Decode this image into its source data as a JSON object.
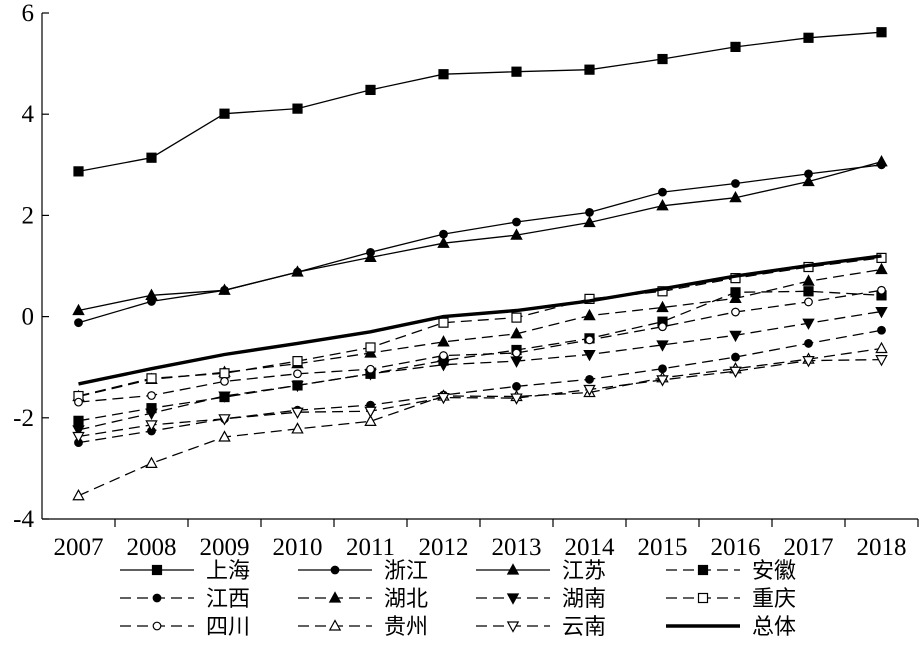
{
  "chart_data": {
    "type": "line",
    "title": "",
    "xlabel": "",
    "ylabel": "",
    "x": [
      "2007",
      "2008",
      "2009",
      "2010",
      "2011",
      "2012",
      "2013",
      "2014",
      "2015",
      "2016",
      "2017",
      "2018"
    ],
    "ylim": [
      -4,
      6
    ],
    "yticks": [
      "-4",
      "-2",
      "0",
      "2",
      "4",
      "6"
    ],
    "grid": false,
    "legend_position": "bottom",
    "series": [
      {
        "name": "上海",
        "line": "solid",
        "marker": "square",
        "filled": true,
        "values": [
          2.87,
          3.14,
          4.01,
          4.11,
          4.48,
          4.79,
          4.84,
          4.88,
          5.09,
          5.33,
          5.51,
          5.62
        ]
      },
      {
        "name": "浙江",
        "line": "solid",
        "marker": "circle",
        "filled": true,
        "values": [
          -0.12,
          0.3,
          0.52,
          0.88,
          1.27,
          1.63,
          1.87,
          2.06,
          2.46,
          2.63,
          2.82,
          3.0
        ]
      },
      {
        "name": "江苏",
        "line": "solid",
        "marker": "triangle-up",
        "filled": true,
        "values": [
          0.12,
          0.42,
          0.52,
          0.88,
          1.17,
          1.45,
          1.61,
          1.86,
          2.19,
          2.35,
          2.67,
          3.06
        ]
      },
      {
        "name": "安徽",
        "line": "dashed",
        "marker": "square",
        "filled": true,
        "values": [
          -2.06,
          -1.81,
          -1.59,
          -1.36,
          -1.13,
          -0.87,
          -0.66,
          -0.43,
          -0.1,
          0.48,
          0.5,
          0.42
        ]
      },
      {
        "name": "江西",
        "line": "dashed",
        "marker": "circle",
        "filled": true,
        "values": [
          -2.49,
          -2.26,
          -2.02,
          -1.85,
          -1.75,
          -1.55,
          -1.38,
          -1.24,
          -1.03,
          -0.8,
          -0.53,
          -0.27
        ]
      },
      {
        "name": "湖北",
        "line": "dashed",
        "marker": "triangle-up",
        "filled": true,
        "values": [
          -1.58,
          -1.24,
          -1.1,
          -0.93,
          -0.72,
          -0.5,
          -0.34,
          0.02,
          0.18,
          0.36,
          0.7,
          0.93
        ]
      },
      {
        "name": "湖南",
        "line": "dashed",
        "marker": "triangle-down",
        "filled": true,
        "values": [
          -2.24,
          -1.91,
          -1.57,
          -1.36,
          -1.13,
          -0.95,
          -0.88,
          -0.75,
          -0.56,
          -0.37,
          -0.13,
          0.1
        ]
      },
      {
        "name": "重庆",
        "line": "dashed",
        "marker": "square",
        "filled": false,
        "values": [
          -1.57,
          -1.22,
          -1.12,
          -0.88,
          -0.61,
          -0.12,
          -0.02,
          0.35,
          0.5,
          0.76,
          0.98,
          1.16
        ]
      },
      {
        "name": "四川",
        "line": "dashed",
        "marker": "circle",
        "filled": false,
        "values": [
          -1.69,
          -1.56,
          -1.28,
          -1.13,
          -1.04,
          -0.77,
          -0.72,
          -0.46,
          -0.2,
          0.09,
          0.29,
          0.52
        ]
      },
      {
        "name": "贵州",
        "line": "dashed",
        "marker": "triangle-up",
        "filled": false,
        "values": [
          -3.54,
          -2.9,
          -2.38,
          -2.22,
          -2.07,
          -1.57,
          -1.58,
          -1.5,
          -1.21,
          -1.03,
          -0.84,
          -0.63
        ]
      },
      {
        "name": "云南",
        "line": "dashed",
        "marker": "triangle-down",
        "filled": false,
        "values": [
          -2.37,
          -2.14,
          -2.02,
          -1.89,
          -1.87,
          -1.6,
          -1.61,
          -1.44,
          -1.25,
          -1.08,
          -0.87,
          -0.85
        ]
      },
      {
        "name": "总体",
        "line": "bold",
        "marker": "none",
        "filled": false,
        "values": [
          -1.33,
          -1.03,
          -0.75,
          -0.53,
          -0.3,
          0.0,
          0.12,
          0.31,
          0.55,
          0.8,
          1.01,
          1.2
        ]
      }
    ]
  }
}
